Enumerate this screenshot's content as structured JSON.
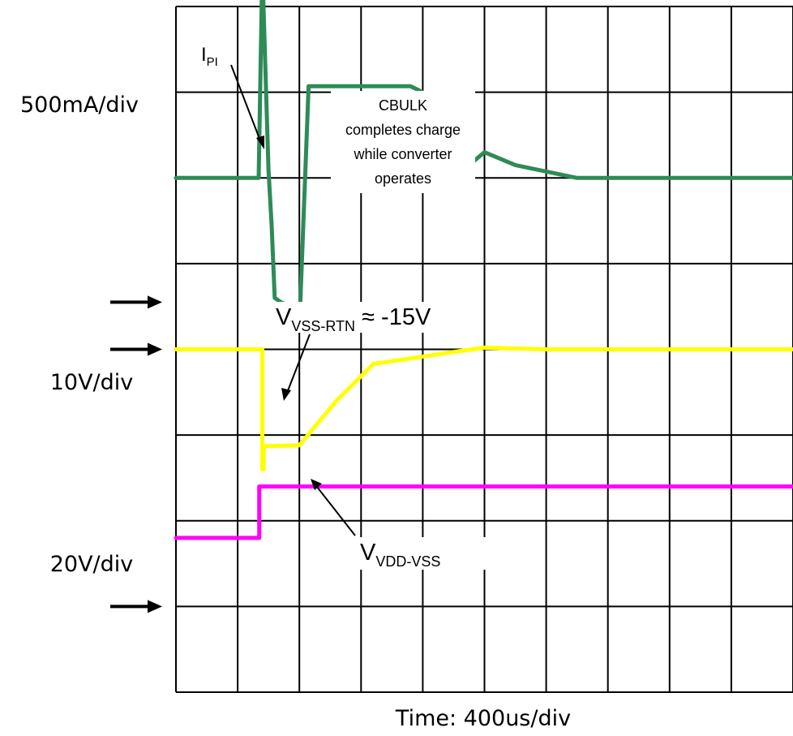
{
  "chart_data": {
    "type": "line",
    "title": "",
    "xlabel": "Time: 400us/div",
    "xlim": [
      0,
      10
    ],
    "ylim": [
      0,
      8
    ],
    "grid": true,
    "channels": [
      {
        "scale_label": "500mA/div"
      },
      {
        "scale_label": "10V/div"
      },
      {
        "scale_label": "20V/div"
      }
    ],
    "series": [
      {
        "name": "I_PI",
        "color": "#2e8b57",
        "x": [
          0,
          1.34,
          1.4,
          1.5,
          1.55,
          1.6,
          1.7,
          2.01,
          2.15,
          3.8,
          4.0,
          4.2,
          4.35,
          4.5,
          5.0,
          5.5,
          6.5,
          10
        ],
        "y": [
          6.0,
          6.0,
          8.45,
          6.1,
          5.45,
          4.6,
          4.55,
          4.45,
          7.07,
          7.07,
          7.0,
          6.6,
          6.2,
          6.0,
          6.3,
          6.15,
          6.0,
          6.0
        ]
      },
      {
        "name": "V_VSS-RTN",
        "color": "#ffff00",
        "x": [
          0,
          1.15,
          1.4,
          1.4,
          1.42,
          1.42,
          2.0,
          2.6,
          3.2,
          4.5,
          5.0,
          6.0,
          10
        ],
        "y": [
          4.0,
          4.0,
          4.0,
          2.6,
          2.6,
          2.87,
          2.88,
          3.4,
          3.83,
          3.97,
          4.02,
          4.0,
          4.0
        ]
      },
      {
        "name": "V_VDD-VSS",
        "color": "#ff00ff",
        "x": [
          0,
          1.35,
          1.35,
          10
        ],
        "y": [
          1.8,
          1.8,
          2.4,
          2.4
        ]
      }
    ],
    "ground_markers": [
      {
        "channel": "500mA/div",
        "y": 4.55
      },
      {
        "channel": "10V/div",
        "y": 4.0
      },
      {
        "channel": "20V/div",
        "y": 1.0
      }
    ]
  },
  "annotations": {
    "ipi_main": "I",
    "ipi_sub": "PI",
    "cbulk_lines": [
      "CBULK",
      "completes charge",
      "while converter",
      "operates"
    ],
    "vss_main": "V",
    "vss_sub": "VSS-RTN",
    "vss_tail": " ≈ -15V",
    "vdd_main": "V",
    "vdd_sub": "VDD-VSS"
  }
}
